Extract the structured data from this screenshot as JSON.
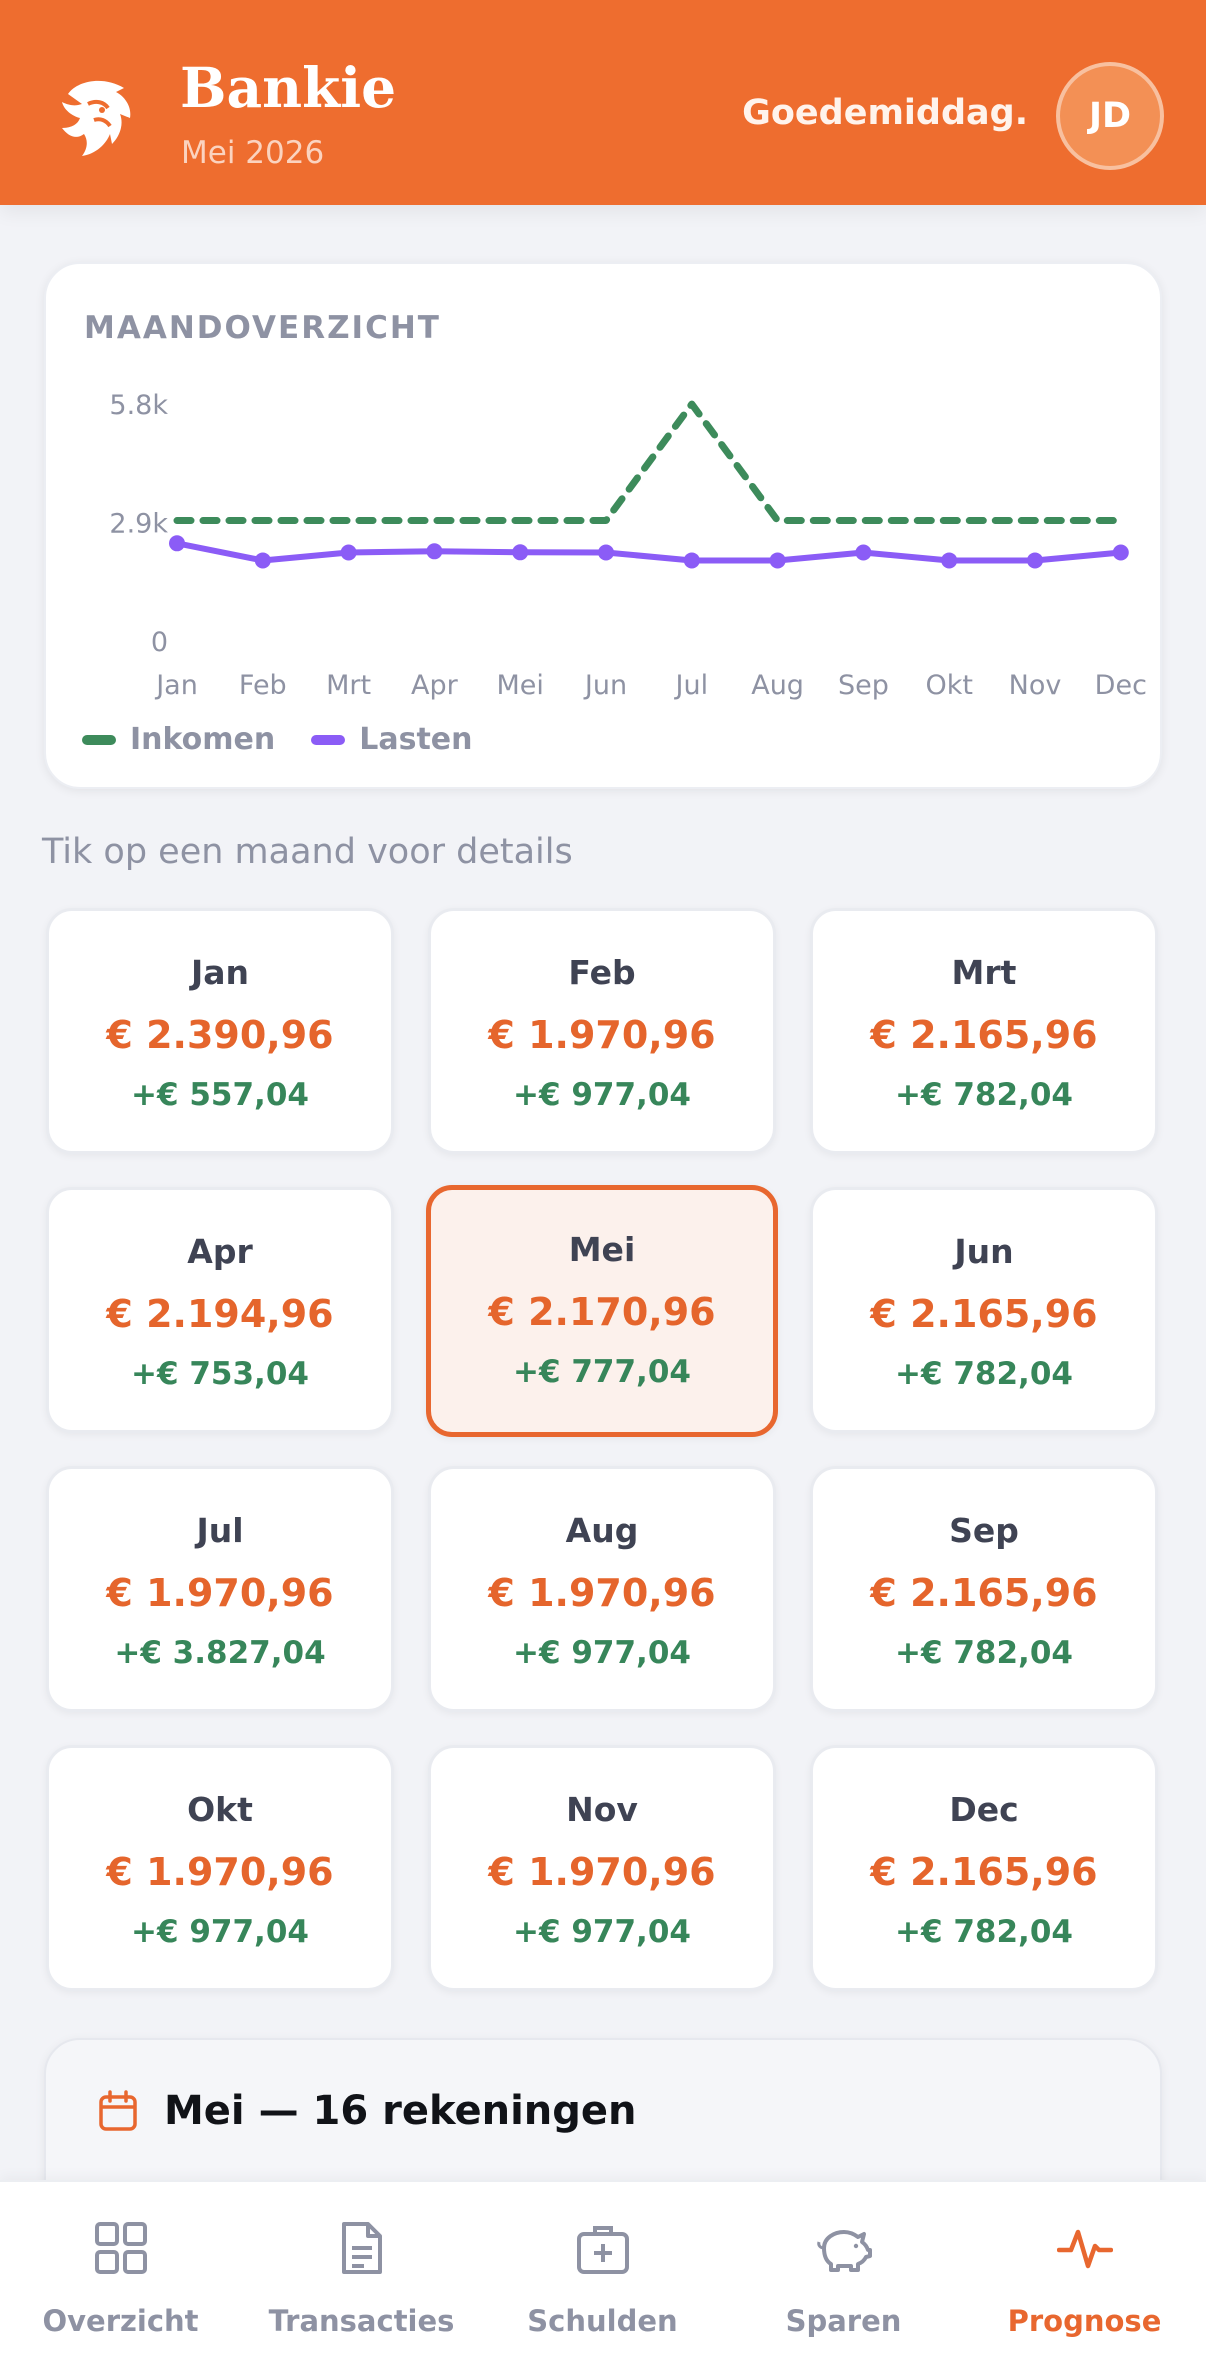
{
  "header": {
    "title": "Bankie",
    "subtitle": "Mei 2026",
    "greeting": "Goedemiddag.",
    "avatar_initials": "JD",
    "logo_icon": "tiger-logo-icon",
    "brand_color": "#ee6d2f"
  },
  "overview": {
    "heading": "MAANDOVERZICHT"
  },
  "chart_data": {
    "type": "line",
    "title": "MAANDOVERZICHT",
    "categories": [
      "Jan",
      "Feb",
      "Mrt",
      "Apr",
      "Mei",
      "Jun",
      "Jul",
      "Aug",
      "Sep",
      "Okt",
      "Nov",
      "Dec"
    ],
    "y_ticks": [
      "0",
      "2.9k",
      "5.8k"
    ],
    "ylim": [
      0,
      5800
    ],
    "series": [
      {
        "name": "Inkomen",
        "color": "#3d8b5b",
        "style": "dashed",
        "values": [
          2948,
          2948,
          2948,
          2948,
          2948,
          2948,
          5798,
          2948,
          2948,
          2948,
          2948,
          2948
        ]
      },
      {
        "name": "Lasten",
        "color": "#8b5cf6",
        "style": "solid-markers",
        "values": [
          2391,
          1971,
          2166,
          2195,
          2171,
          2166,
          1971,
          1971,
          2166,
          1971,
          1971,
          2166
        ]
      }
    ],
    "legend_position": "bottom-left",
    "grid": false
  },
  "hint": "Tik op een maand voor details",
  "months": [
    {
      "name": "Jan",
      "cost": "€ 2.390,96",
      "net": "+€ 557,04",
      "selected": false
    },
    {
      "name": "Feb",
      "cost": "€ 1.970,96",
      "net": "+€ 977,04",
      "selected": false
    },
    {
      "name": "Mrt",
      "cost": "€ 2.165,96",
      "net": "+€ 782,04",
      "selected": false
    },
    {
      "name": "Apr",
      "cost": "€ 2.194,96",
      "net": "+€ 753,04",
      "selected": false
    },
    {
      "name": "Mei",
      "cost": "€ 2.170,96",
      "net": "+€ 777,04",
      "selected": true
    },
    {
      "name": "Jun",
      "cost": "€ 2.165,96",
      "net": "+€ 782,04",
      "selected": false
    },
    {
      "name": "Jul",
      "cost": "€ 1.970,96",
      "net": "+€ 3.827,04",
      "selected": false
    },
    {
      "name": "Aug",
      "cost": "€ 1.970,96",
      "net": "+€ 977,04",
      "selected": false
    },
    {
      "name": "Sep",
      "cost": "€ 2.165,96",
      "net": "+€ 782,04",
      "selected": false
    },
    {
      "name": "Okt",
      "cost": "€ 1.970,96",
      "net": "+€ 977,04",
      "selected": false
    },
    {
      "name": "Nov",
      "cost": "€ 1.970,96",
      "net": "+€ 977,04",
      "selected": false
    },
    {
      "name": "Dec",
      "cost": "€ 2.165,96",
      "net": "+€ 782,04",
      "selected": false
    }
  ],
  "bills": {
    "title": "Mei — 16 rekeningen",
    "icon": "calendar-icon"
  },
  "nav": {
    "items": [
      {
        "label": "Overzicht",
        "icon": "grid-icon",
        "active": false
      },
      {
        "label": "Transacties",
        "icon": "document-icon",
        "active": false
      },
      {
        "label": "Schulden",
        "icon": "medical-kit-icon",
        "active": false
      },
      {
        "label": "Sparen",
        "icon": "piggy-bank-icon",
        "active": false
      },
      {
        "label": "Prognose",
        "icon": "pulse-icon",
        "active": true
      }
    ],
    "active_color": "#e8672f",
    "inactive_color": "#8e92a3"
  }
}
